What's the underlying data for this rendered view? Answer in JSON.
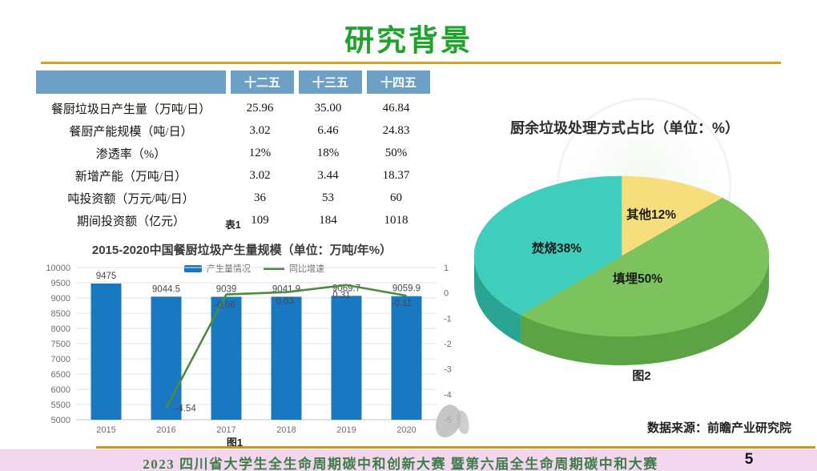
{
  "slide": {
    "title": "研究背景",
    "page_number": "5",
    "footer_text": "2023 四川省大学生全生命周期碳中和创新大赛 暨第六届全生命周期碳中和大赛",
    "data_source": "数据来源：前瞻产业研究院"
  },
  "table": {
    "caption": "表1",
    "headers": [
      "",
      "十二五",
      "十三五",
      "十四五"
    ],
    "rows": [
      {
        "label": "餐厨垃圾日产生量（万吨/日）",
        "values": [
          "25.96",
          "35.00",
          "46.84"
        ]
      },
      {
        "label": "餐厨产能规模（吨/日）",
        "values": [
          "3.02",
          "6.46",
          "24.83"
        ]
      },
      {
        "label": "渗透率（%）",
        "values": [
          "12%",
          "18%",
          "50%"
        ]
      },
      {
        "label": "新增产能（万吨/日）",
        "values": [
          "3.02",
          "3.44",
          "18.37"
        ]
      },
      {
        "label": "吨投资额（万元/吨/日）",
        "values": [
          "36",
          "53",
          "60"
        ]
      },
      {
        "label": "期间投资额（亿元）",
        "values": [
          "109",
          "184",
          "1018"
        ]
      }
    ]
  },
  "chart_data": [
    {
      "type": "bar",
      "title": "2015-2020中国餐厨垃圾产生量规模（单位：万吨/年%）",
      "caption": "图1",
      "categories": [
        "2015",
        "2016",
        "2017",
        "2018",
        "2019",
        "2020"
      ],
      "series": [
        {
          "name": "产生量情况",
          "kind": "bar",
          "color": "#1878C2",
          "values": [
            9475,
            9044.5,
            9039,
            9041.9,
            9069.7,
            9059.9
          ]
        },
        {
          "name": "同比增速",
          "kind": "line",
          "color": "#4C8C3F",
          "values": [
            null,
            -4.54,
            -0.06,
            0.03,
            0.31,
            -0.11
          ]
        }
      ],
      "left_axis": {
        "min": 5000,
        "max": 10000,
        "step": 500
      },
      "right_axis": {
        "min": -5,
        "max": 1,
        "step": 1
      },
      "legend_position": "top",
      "grid": true
    },
    {
      "type": "pie",
      "style": "3d",
      "title": "厨余垃圾处理方式占比（单位：%）",
      "caption": "图2",
      "labels": [
        "其他",
        "填埋",
        "焚烧"
      ],
      "values": [
        12,
        50,
        38
      ],
      "label_texts": [
        "其他12%",
        "填埋50%",
        "焚烧38%"
      ],
      "colors": [
        "#F6DE7D",
        "#7CC35E",
        "#3FCDBD"
      ],
      "side_colors": [
        "#D8BA54",
        "#5BA344",
        "#2AA493"
      ],
      "start_angle_deg": -90,
      "clockwise": true
    }
  ],
  "colors": {
    "title_green": "#1FA32C",
    "divider_gold": "#C9991C",
    "table_header_blue": "#6CA0C4",
    "bar_blue": "#1878C2",
    "line_green": "#4C8C3F",
    "footer_pink": "#F3D7EF",
    "footer_text_green": "#3F7D49"
  }
}
